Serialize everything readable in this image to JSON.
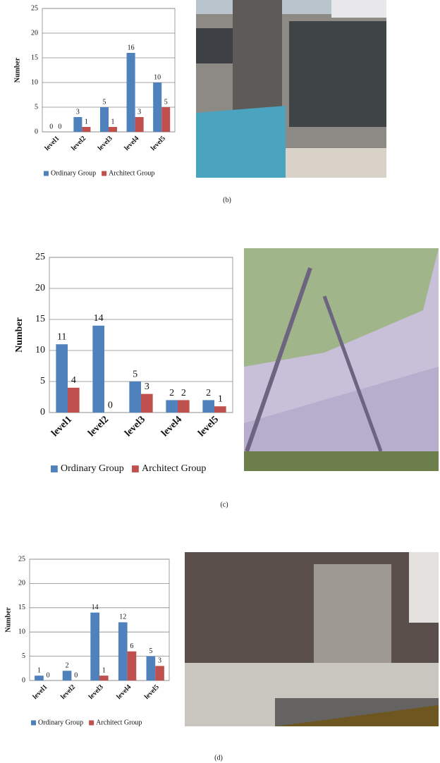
{
  "chart_data": [
    {
      "type": "bar",
      "caption": "(b)",
      "y_label": "Number",
      "categories": [
        "level1",
        "level2",
        "level3",
        "level4",
        "level5"
      ],
      "series": [
        {
          "name": "Ordinary Group",
          "color": "#4f81bd",
          "values": [
            0,
            3,
            5,
            16,
            10
          ]
        },
        {
          "name": "Architect Group",
          "color": "#c0504d",
          "values": [
            0,
            1,
            1,
            3,
            5
          ]
        }
      ],
      "ylim": [
        0,
        25
      ],
      "yticks": [
        0,
        5,
        10,
        15,
        20,
        25
      ],
      "grid": true,
      "legend": "bottom"
    },
    {
      "type": "bar",
      "caption": "(c)",
      "y_label": "Number",
      "categories": [
        "level1",
        "level2",
        "level3",
        "level4",
        "level5"
      ],
      "series": [
        {
          "name": "Ordinary Group",
          "color": "#4f81bd",
          "values": [
            11,
            14,
            5,
            2,
            2
          ]
        },
        {
          "name": "Architect Group",
          "color": "#c0504d",
          "values": [
            4,
            0,
            3,
            2,
            1
          ]
        }
      ],
      "ylim": [
        0,
        25
      ],
      "yticks": [
        0,
        5,
        10,
        15,
        20,
        25
      ],
      "grid": true,
      "legend": "bottom"
    },
    {
      "type": "bar",
      "caption": "(d)",
      "y_label": "Number",
      "categories": [
        "level1",
        "level2",
        "level3",
        "level4",
        "level5"
      ],
      "series": [
        {
          "name": "Ordinary Group",
          "color": "#4f81bd",
          "values": [
            1,
            2,
            14,
            12,
            5
          ]
        },
        {
          "name": "Architect Group",
          "color": "#c0504d",
          "values": [
            0,
            0,
            1,
            6,
            3
          ]
        }
      ],
      "ylim": [
        0,
        25
      ],
      "yticks": [
        0,
        5,
        10,
        15,
        20,
        25
      ],
      "grid": true,
      "legend": "bottom"
    }
  ]
}
